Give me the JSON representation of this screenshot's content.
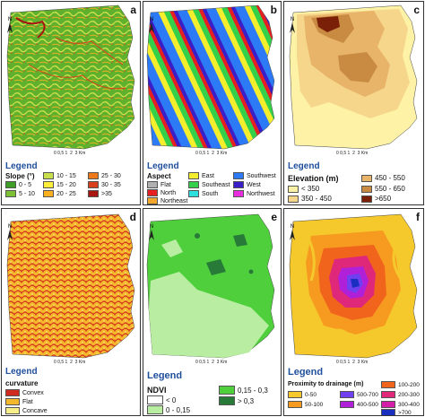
{
  "panels": {
    "a": {
      "label": "a",
      "legend": "Legend",
      "title": "Slope (°)",
      "items": [
        {
          "text": "0 - 5",
          "color": "#3f9e25"
        },
        {
          "text": "5 - 10",
          "color": "#7ec034"
        },
        {
          "text": "10 - 15",
          "color": "#c9e04c"
        },
        {
          "text": "15 - 20",
          "color": "#ffef3a"
        },
        {
          "text": "20 - 25",
          "color": "#ffb020"
        },
        {
          "text": "25 - 30",
          "color": "#f07a1a"
        },
        {
          "text": "30 - 35",
          "color": "#d8401a"
        },
        {
          "text": ">35",
          "color": "#a81510"
        }
      ]
    },
    "b": {
      "label": "b",
      "legend": "Legend",
      "title": "Aspect",
      "items": [
        {
          "text": "Flat",
          "color": "#b0b0b0"
        },
        {
          "text": "North",
          "color": "#e62020"
        },
        {
          "text": "Northeast",
          "color": "#f2a62c"
        },
        {
          "text": "East",
          "color": "#f5ee2c"
        },
        {
          "text": "Southeast",
          "color": "#35d04a"
        },
        {
          "text": "South",
          "color": "#2ce0e0"
        },
        {
          "text": "Southwest",
          "color": "#2c7af5"
        },
        {
          "text": "West",
          "color": "#3a1ec8"
        },
        {
          "text": "Northwest",
          "color": "#e82ce0"
        }
      ]
    },
    "c": {
      "label": "c",
      "legend": "Legend",
      "title": "Elevation (m)",
      "items": [
        {
          "text": "< 350",
          "color": "#fdf2a6"
        },
        {
          "text": "350 - 450",
          "color": "#f5d68a"
        },
        {
          "text": "450 - 550",
          "color": "#e8b469"
        },
        {
          "text": "550 - 650",
          "color": "#c98b42"
        },
        {
          "text": ">650",
          "color": "#7a2008"
        }
      ]
    },
    "d": {
      "label": "d",
      "legend": "Legend",
      "title": "curvature",
      "items": [
        {
          "text": "Convex",
          "color": "#d12b1f"
        },
        {
          "text": "Flat",
          "color": "#f5b82c"
        },
        {
          "text": "Concave",
          "color": "#f6ee88"
        }
      ]
    },
    "e": {
      "label": "e",
      "legend": "Legend",
      "title": "NDVI",
      "items": [
        {
          "text": "< 0",
          "color": "#ffffff"
        },
        {
          "text": "0 - 0,15",
          "color": "#b9eea2"
        },
        {
          "text": "0,15 - 0,3",
          "color": "#4fcf3c"
        },
        {
          "text": "> 0,3",
          "color": "#277a38"
        }
      ]
    },
    "f": {
      "label": "f",
      "legend": "Legend",
      "title": "Proximity to drainage (m)",
      "items": [
        {
          "text": "0-50",
          "color": "#f5c82c"
        },
        {
          "text": "50-100",
          "color": "#f79a20"
        },
        {
          "text": "100-200",
          "color": "#f0641c"
        },
        {
          "text": "200-300",
          "color": "#e0287a"
        },
        {
          "text": "300-400",
          "color": "#d41ea8"
        },
        {
          "text": "400-500",
          "color": "#b020d8"
        },
        {
          "text": "500-700",
          "color": "#7040f0"
        },
        {
          "text": ">700",
          "color": "#1a2ec0"
        }
      ]
    }
  },
  "scale": {
    "ticks": [
      "0",
      "0,5",
      "1",
      "2",
      "3"
    ],
    "unit": "Km"
  },
  "north_label": "N",
  "icons": {
    "north": "north-arrow-icon"
  }
}
